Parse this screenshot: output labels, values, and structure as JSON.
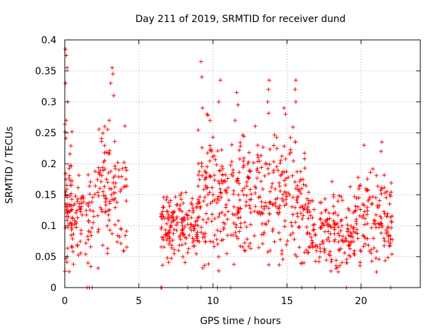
{
  "chart_data": {
    "type": "scatter",
    "title": "Day 211 of 2019, SRMTID for receiver dund",
    "xlabel": "GPS time / hours",
    "ylabel": "SRMTID / TECUs",
    "xlim": [
      0,
      24
    ],
    "ylim": [
      0,
      0.4
    ],
    "xticks": [
      0,
      5,
      10,
      15,
      20
    ],
    "xtick_labels": [
      "0",
      "5",
      "10",
      "15",
      "20"
    ],
    "yticks": [
      0,
      0.05,
      0.1,
      0.15,
      0.2,
      0.25,
      0.3,
      0.35,
      0.4
    ],
    "ytick_labels": [
      "0",
      "0.05",
      "0.1",
      "0.15",
      "0.2",
      "0.25",
      "0.3",
      "0.35",
      "0.4"
    ],
    "grid": true,
    "marker": "+",
    "color": "#ff0000",
    "series": [
      {
        "name": "SRMTID",
        "clusters": [
          {
            "x_start": 0.0,
            "x_end": 0.5,
            "y_mean": 0.14,
            "y_spread": 0.06,
            "count": 60
          },
          {
            "x_start": 0.5,
            "x_end": 2.0,
            "y_mean": 0.11,
            "y_spread": 0.03,
            "count": 70
          },
          {
            "x_start": 2.0,
            "x_end": 4.2,
            "y_mean": 0.16,
            "y_spread": 0.05,
            "count": 110
          },
          {
            "x_start": 6.5,
            "x_end": 9.0,
            "y_mean": 0.1,
            "y_spread": 0.025,
            "count": 160
          },
          {
            "x_start": 9.0,
            "x_end": 13.5,
            "y_mean": 0.15,
            "y_spread": 0.05,
            "count": 260
          },
          {
            "x_start": 13.5,
            "x_end": 16.3,
            "y_mean": 0.14,
            "y_spread": 0.055,
            "count": 150
          },
          {
            "x_start": 16.3,
            "x_end": 19.5,
            "y_mean": 0.09,
            "y_spread": 0.03,
            "count": 170
          },
          {
            "x_start": 19.5,
            "x_end": 22.2,
            "y_mean": 0.11,
            "y_spread": 0.035,
            "count": 140
          }
        ],
        "peaks": [
          [
            0.05,
            0.385
          ],
          [
            0.1,
            0.375
          ],
          [
            0.05,
            0.33
          ],
          [
            0.15,
            0.355
          ],
          [
            0.2,
            0.3
          ],
          [
            0.1,
            0.27
          ],
          [
            3.2,
            0.355
          ],
          [
            3.25,
            0.345
          ],
          [
            3.1,
            0.33
          ],
          [
            3.3,
            0.31
          ],
          [
            3.0,
            0.27
          ],
          [
            2.7,
            0.26
          ],
          [
            9.2,
            0.365
          ],
          [
            9.25,
            0.34
          ],
          [
            9.3,
            0.29
          ],
          [
            9.6,
            0.28
          ],
          [
            10.5,
            0.335
          ],
          [
            10.4,
            0.3
          ],
          [
            11.6,
            0.315
          ],
          [
            11.7,
            0.295
          ],
          [
            11.5,
            0.27
          ],
          [
            13.8,
            0.335
          ],
          [
            13.75,
            0.32
          ],
          [
            13.7,
            0.3
          ],
          [
            15.6,
            0.335
          ],
          [
            15.55,
            0.32
          ],
          [
            15.6,
            0.3
          ],
          [
            14.8,
            0.29
          ],
          [
            14.9,
            0.28
          ],
          [
            20.2,
            0.23
          ],
          [
            21.4,
            0.235
          ],
          [
            21.35,
            0.22
          ]
        ],
        "zero_points": [
          1.5,
          1.65,
          1.85,
          6.5,
          6.55,
          8.3,
          9.2,
          10.3,
          11.2,
          16.0,
          16.9,
          19.0,
          20.0,
          22.0
        ]
      }
    ]
  }
}
